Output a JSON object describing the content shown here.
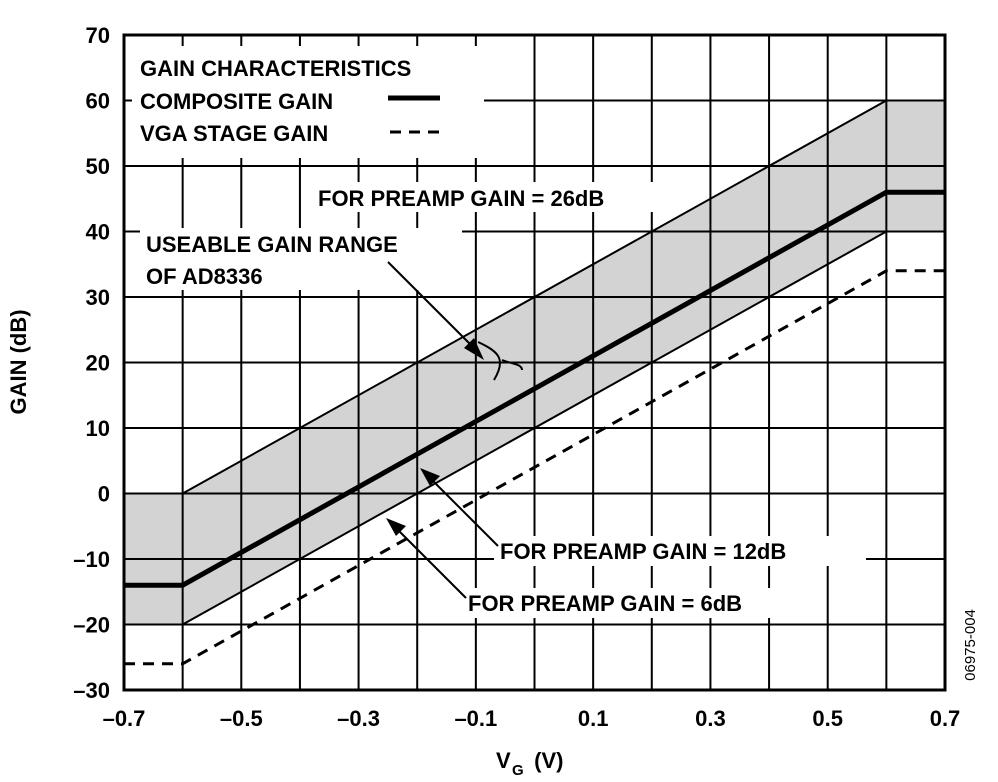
{
  "chart_data": {
    "type": "line",
    "xlabel_main": "V",
    "xlabel_sub": "G",
    "xlabel_unit": " (V)",
    "ylabel": "GAIN (dB)",
    "xlim": [
      -0.7,
      0.7
    ],
    "ylim": [
      -30,
      70
    ],
    "grid": true,
    "x_gridlines": [
      -0.7,
      -0.6,
      -0.5,
      -0.4,
      -0.3,
      -0.2,
      -0.1,
      0,
      0.1,
      0.2,
      0.3,
      0.4,
      0.5,
      0.6,
      0.7
    ],
    "x_ticks": [
      -0.7,
      -0.5,
      -0.3,
      -0.1,
      0.1,
      0.3,
      0.5,
      0.7
    ],
    "x_tick_labels": [
      "–0.7",
      "–0.5",
      "–0.3",
      "–0.1",
      "0.1",
      "0.3",
      "0.5",
      "0.7"
    ],
    "y_ticks": [
      -30,
      -20,
      -10,
      0,
      10,
      20,
      30,
      40,
      50,
      60,
      70
    ],
    "y_tick_labels": [
      "–30",
      "–20",
      "–10",
      "0",
      "10",
      "20",
      "30",
      "40",
      "50",
      "60",
      "70"
    ],
    "legend": {
      "title": "GAIN CHARACTERISTICS",
      "composite": "COMPOSITE GAIN",
      "vga": "VGA STAGE GAIN",
      "placement": "top-left"
    },
    "band": {
      "upper": {
        "x": [
          -0.7,
          -0.6,
          0.6,
          0.7
        ],
        "y": [
          0,
          0,
          60,
          60
        ]
      },
      "lower": {
        "x": [
          -0.7,
          -0.6,
          0.6,
          0.7
        ],
        "y": [
          -20,
          -20,
          40,
          40
        ]
      }
    },
    "series": [
      {
        "style": "solid",
        "x": [
          -0.7,
          -0.6,
          0.6,
          0.7
        ],
        "y": [
          -14,
          -14,
          46,
          46
        ]
      },
      {
        "style": "dashed",
        "x": [
          -0.7,
          -0.6,
          0.6,
          0.7
        ],
        "y": [
          -26,
          -26,
          34,
          34
        ]
      }
    ],
    "annotations": {
      "preamp26": "FOR PREAMP GAIN = 26dB",
      "useable1": "USEABLE GAIN RANGE",
      "useable2": "OF AD8336",
      "preamp12": "FOR PREAMP GAIN = 12dB",
      "preamp6": "FOR PREAMP GAIN = 6dB"
    },
    "figure_id": "06975-004"
  }
}
